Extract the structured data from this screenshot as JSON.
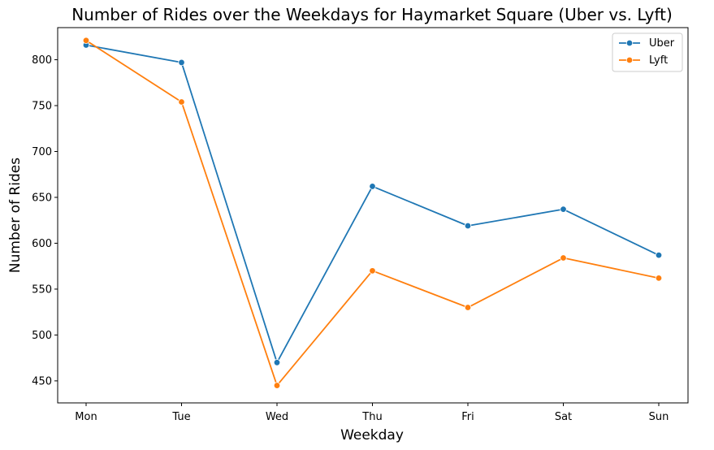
{
  "chart_data": {
    "type": "line",
    "title": "Number of Rides over the Weekdays for Haymarket Square (Uber vs. Lyft)",
    "xlabel": "Weekday",
    "ylabel": "Number of Rides",
    "categories": [
      "Mon",
      "Tue",
      "Wed",
      "Thu",
      "Fri",
      "Sat",
      "Sun"
    ],
    "yticks": [
      450,
      500,
      550,
      600,
      650,
      700,
      750,
      800
    ],
    "ylim": [
      426,
      835
    ],
    "grid": false,
    "legend_position": "top-right",
    "series": [
      {
        "name": "Uber",
        "color": "#1f77b4",
        "values": [
          816,
          797,
          470,
          662,
          619,
          637,
          587
        ]
      },
      {
        "name": "Lyft",
        "color": "#ff7f0e",
        "values": [
          821,
          754,
          445,
          570,
          530,
          584,
          562
        ]
      }
    ]
  }
}
